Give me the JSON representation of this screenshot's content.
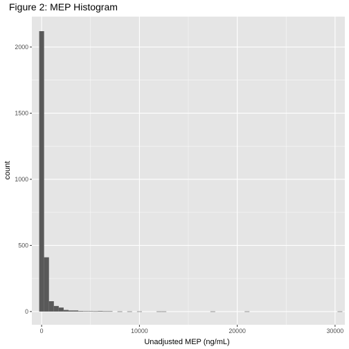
{
  "chart_data": {
    "type": "bar",
    "title": "Figure 2: MEP Histogram",
    "xlabel": "Unadjusted MEP (ng/mL)",
    "ylabel": "count",
    "xlim": [
      -1000,
      31000
    ],
    "ylim": [
      -100,
      2230
    ],
    "x_ticks": [
      0,
      10000,
      20000,
      30000
    ],
    "x_tick_labels": [
      "0",
      "10000",
      "20000",
      "30000"
    ],
    "y_ticks": [
      0,
      500,
      1000,
      1500,
      2000
    ],
    "y_tick_labels": [
      "0",
      "500",
      "1000",
      "1500",
      "2000"
    ],
    "bin_width": 500,
    "bins": [
      {
        "x0": -250,
        "x1": 250,
        "count": 2120
      },
      {
        "x0": 250,
        "x1": 750,
        "count": 410
      },
      {
        "x0": 750,
        "x1": 1250,
        "count": 78
      },
      {
        "x0": 1250,
        "x1": 1750,
        "count": 42
      },
      {
        "x0": 1750,
        "x1": 2250,
        "count": 30
      },
      {
        "x0": 2250,
        "x1": 2750,
        "count": 12
      },
      {
        "x0": 2750,
        "x1": 3250,
        "count": 8
      },
      {
        "x0": 3250,
        "x1": 3750,
        "count": 8
      },
      {
        "x0": 3750,
        "x1": 4250,
        "count": 4
      },
      {
        "x0": 4250,
        "x1": 4750,
        "count": 3
      },
      {
        "x0": 4750,
        "x1": 5250,
        "count": 3
      },
      {
        "x0": 5250,
        "x1": 5750,
        "count": 2
      },
      {
        "x0": 5750,
        "x1": 6250,
        "count": 4
      },
      {
        "x0": 6250,
        "x1": 6750,
        "count": 2
      },
      {
        "x0": 6750,
        "x1": 7250,
        "count": 2
      },
      {
        "x0": 7750,
        "x1": 8250,
        "count": 1
      },
      {
        "x0": 8750,
        "x1": 9250,
        "count": 1
      },
      {
        "x0": 9750,
        "x1": 10250,
        "count": 1
      },
      {
        "x0": 11750,
        "x1": 12250,
        "count": 1
      },
      {
        "x0": 12250,
        "x1": 12750,
        "count": 1
      },
      {
        "x0": 17250,
        "x1": 17750,
        "count": 1
      },
      {
        "x0": 20750,
        "x1": 21250,
        "count": 1
      },
      {
        "x0": 30250,
        "x1": 30750,
        "count": 1
      }
    ],
    "grid": true,
    "colors": {
      "panel_background": "#e5e5e5",
      "grid_major": "#ffffff",
      "bar_fill": "#595959",
      "tick_label": "#4d4d4d",
      "tick_mark": "#333333"
    }
  }
}
